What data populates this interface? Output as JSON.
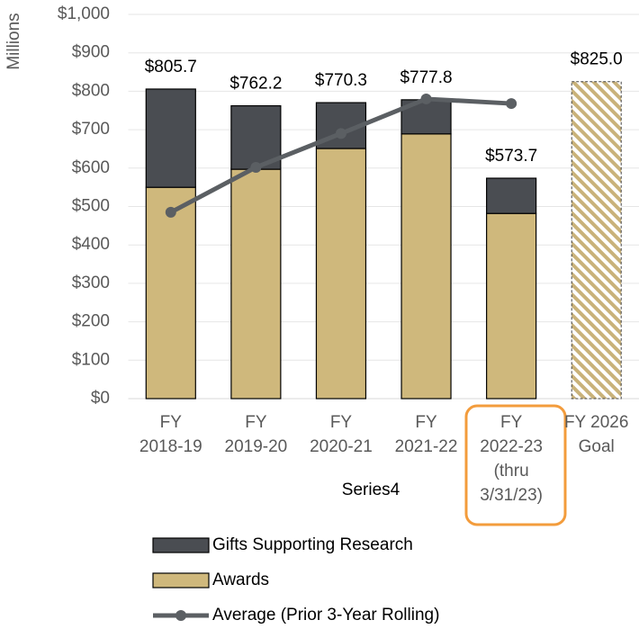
{
  "chart_data": {
    "type": "stacked-bar-line",
    "y_label": "Millions",
    "x_label": "Series4",
    "categories": [
      [
        "FY",
        "2018-19"
      ],
      [
        "FY",
        "2019-20"
      ],
      [
        "FY",
        "2020-21"
      ],
      [
        "FY",
        "2021-22"
      ],
      [
        "FY",
        "2022-23",
        "(thru",
        "3/31/23)"
      ],
      [
        "FY 2026",
        "Goal"
      ]
    ],
    "series": [
      {
        "name": "Gifts Supporting Research",
        "color": "#4a4d52",
        "values": [
          255.7,
          165.2,
          119.3,
          88.8,
          91.7,
          null
        ]
      },
      {
        "name": "Awards",
        "color": "#cfb87c",
        "values": [
          550,
          597,
          651,
          689,
          482,
          null
        ]
      },
      {
        "name": "Average (Prior 3-Year Rolling)",
        "color": "#5b5f63",
        "type": "line",
        "values": [
          485,
          602,
          690,
          780,
          768,
          null
        ]
      },
      {
        "color": "#c9b27a",
        "pattern": "hatch",
        "values": [
          null,
          null,
          null,
          null,
          null,
          825.0
        ],
        "value_labels": [
          null,
          null,
          null,
          null,
          null,
          "$825.0"
        ]
      }
    ],
    "totals": {
      "values": [
        805.7,
        762.2,
        770.3,
        777.8,
        573.7,
        null
      ],
      "value_labels": [
        "$805.7",
        "$762.2",
        "$770.3",
        "$777.8",
        "$573.7",
        null
      ]
    },
    "ylim": [
      0,
      1000
    ],
    "yticks": [
      {
        "value": 0,
        "label": "$0"
      },
      {
        "value": 100,
        "label": "$100"
      },
      {
        "value": 200,
        "label": "$200"
      },
      {
        "value": 300,
        "label": "$300"
      },
      {
        "value": 400,
        "label": "$400"
      },
      {
        "value": 500,
        "label": "$500"
      },
      {
        "value": 600,
        "label": "$600"
      },
      {
        "value": 700,
        "label": "$700"
      },
      {
        "value": 800,
        "label": "$800"
      },
      {
        "value": 900,
        "label": "$900"
      },
      {
        "value": 1000,
        "label": "$1,000"
      }
    ],
    "grid": true,
    "legend": "bottom"
  }
}
